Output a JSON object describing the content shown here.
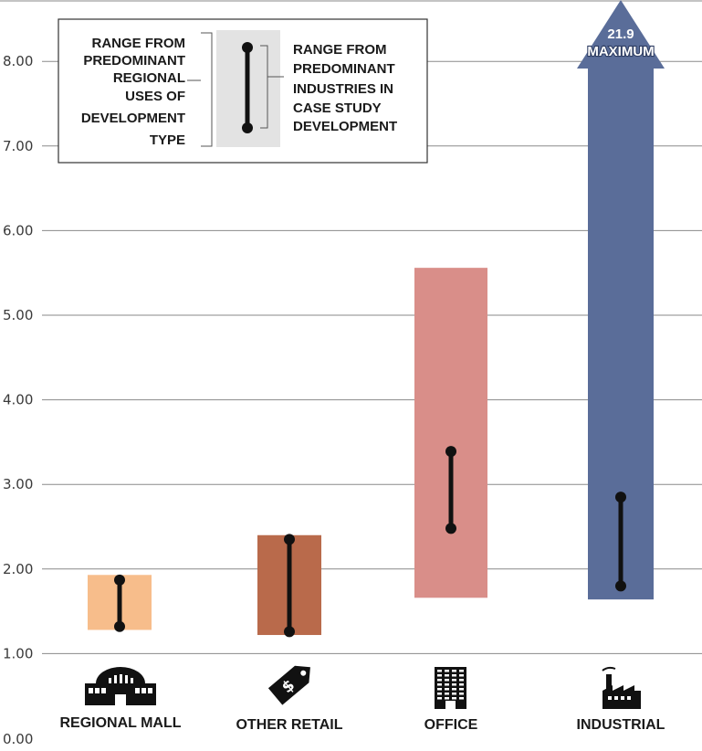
{
  "chart_data": {
    "type": "range",
    "ylim": [
      0,
      8.5
    ],
    "y_ticks": [
      "0.00",
      "1.00",
      "2.00",
      "3.00",
      "4.00",
      "5.00",
      "6.00",
      "7.00",
      "8.00"
    ],
    "grid": true,
    "categories": [
      "REGIONAL MALL",
      "OTHER RETAIL",
      "OFFICE",
      "INDUSTRIAL"
    ],
    "regional_range": [
      {
        "low": 1.28,
        "high": 1.93,
        "color": "#f7bd8b"
      },
      {
        "low": 1.22,
        "high": 2.4,
        "color": "#b96a4b"
      },
      {
        "low": 1.66,
        "high": 5.56,
        "color": "#d98e89"
      },
      {
        "low": 1.64,
        "high": 21.9,
        "color": "#5a6d99",
        "arrow": true
      }
    ],
    "case_study_range": [
      {
        "low": 1.32,
        "high": 1.87
      },
      {
        "low": 1.26,
        "high": 2.35
      },
      {
        "low": 2.48,
        "high": 3.39
      },
      {
        "low": 1.8,
        "high": 2.85
      }
    ],
    "maximum": {
      "value": "21.9",
      "label": "MAXIMUM"
    },
    "legend": {
      "regional_label": [
        "RANGE FROM",
        "PREDOMINANT",
        "REGIONAL",
        "USES OF",
        "DEVELOPMENT",
        "TYPE"
      ],
      "case_label": [
        "RANGE FROM",
        "PREDOMINANT",
        "INDUSTRIES IN",
        "CASE STUDY",
        "DEVELOPMENT"
      ],
      "placement": "top-left"
    }
  },
  "icons": [
    "mall-icon",
    "price-tag-icon",
    "office-building-icon",
    "factory-icon"
  ]
}
